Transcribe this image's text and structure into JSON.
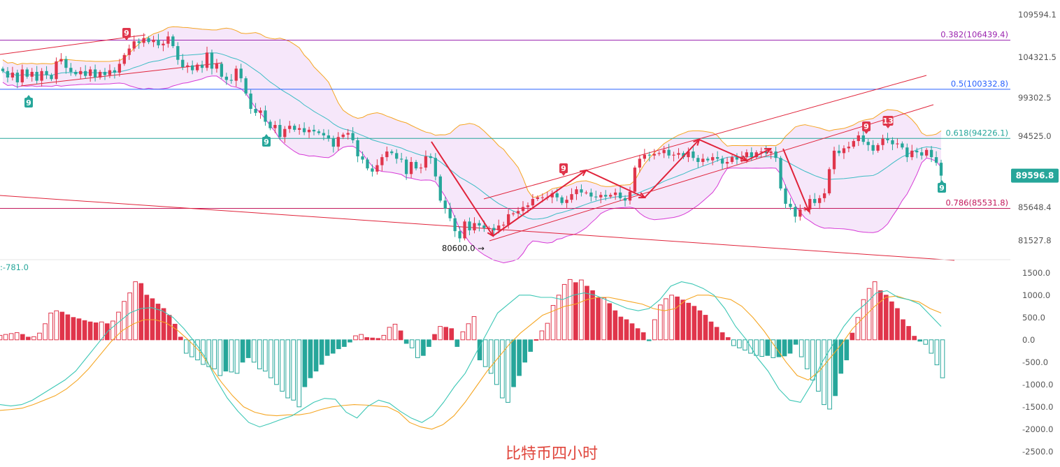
{
  "chart_data": [
    {
      "type": "candlestick",
      "title": "",
      "y_ticks": [
        "109594.1",
        "104321.5",
        "99302.5",
        "94525.0",
        "85648.4",
        "81527.8"
      ],
      "ylim": [
        79500,
        111000
      ],
      "current_price": {
        "label": "89596.8",
        "value": 89596.8,
        "color": "#26a69a"
      },
      "low_annotation": {
        "label": "80600.0",
        "value": 80600.0
      },
      "fib_levels": [
        {
          "label": "0.382(106439.4)",
          "value": 106439.4,
          "color": "#9c27b0"
        },
        {
          "label": "0.5(100332.8)",
          "value": 100332.8,
          "color": "#2962ff"
        },
        {
          "label": "0.618(94226.1)",
          "value": 94226.1,
          "color": "#26a69a"
        },
        {
          "label": "0.786(85531.8)",
          "value": 85531.8,
          "color": "#c2185b"
        }
      ],
      "td_markers": [
        {
          "label": "9",
          "type": "sell"
        },
        {
          "label": "9",
          "type": "buy"
        },
        {
          "label": "9",
          "type": "buy"
        },
        {
          "label": "9",
          "type": "sell"
        },
        {
          "label": "9",
          "type": "sell"
        },
        {
          "label": "13",
          "type": "sell"
        },
        {
          "label": "9",
          "type": "buy"
        }
      ],
      "closes": [
        102600,
        101800,
        102400,
        101200,
        102800,
        101900,
        102500,
        101400,
        102600,
        102100,
        101600,
        103800,
        104100,
        103000,
        102500,
        102200,
        102600,
        102000,
        102800,
        101800,
        102500,
        102100,
        102700,
        102400,
        103500,
        104600,
        105400,
        106300,
        106100,
        106700,
        106200,
        106500,
        105800,
        106000,
        106900,
        105700,
        104000,
        103100,
        103300,
        102700,
        103400,
        103000,
        104900,
        102900,
        103500,
        101900,
        101500,
        101400,
        102900,
        101700,
        99800,
        97900,
        97400,
        97700,
        96300,
        95500,
        95900,
        94400,
        95400,
        95800,
        95300,
        95500,
        95000,
        95300,
        95100,
        94900,
        94600,
        94200,
        93200,
        94400,
        94700,
        94900,
        94000,
        92000,
        91600,
        90500,
        90100,
        90900,
        91900,
        92600,
        92400,
        91700,
        91600,
        89800,
        91300,
        90500,
        90600,
        92000,
        91800,
        89500,
        86500,
        85500,
        84300,
        82700,
        81800,
        83900,
        82800,
        83700,
        83400,
        83100,
        83100,
        82800,
        83400,
        83500,
        84800,
        84900,
        85200,
        85700,
        85900,
        86700,
        86900,
        86900,
        86900,
        87400,
        86900,
        86200,
        86600,
        87300,
        87900,
        87500,
        87500,
        87000,
        86900,
        87200,
        87000,
        87200,
        87500,
        86800,
        86500,
        87600,
        90600,
        91700,
        92200,
        92100,
        92300,
        92400,
        92800,
        92100,
        92200,
        92400,
        91900,
        92600,
        91800,
        91300,
        91700,
        91500,
        91900,
        91700,
        91100,
        91300,
        91900,
        91600,
        91900,
        92500,
        91900,
        92500,
        92600,
        92400,
        92600,
        91800,
        88000,
        86100,
        85700,
        84500,
        85400,
        85400,
        86700,
        86200,
        86800,
        87400,
        90400,
        92700,
        92400,
        93000,
        93200,
        93900,
        94600,
        93800,
        93400,
        92700,
        93400,
        94200,
        94000,
        93500,
        93600,
        93100,
        91900,
        92700,
        92500,
        92100,
        92800,
        91900,
        91200,
        89600
      ]
    },
    {
      "type": "bar",
      "title": "",
      "label": "-781.0",
      "y_ticks": [
        "1500.0",
        "1000.0",
        "500.0",
        "0.0",
        "-500.0",
        "-1000.0",
        "-1500.0",
        "-2000.0",
        "-2500.0"
      ],
      "ylim": [
        -2800,
        1700
      ],
      "histogram": [
        100,
        120,
        140,
        160,
        120,
        60,
        70,
        150,
        360,
        600,
        650,
        620,
        560,
        500,
        470,
        430,
        400,
        380,
        400,
        360,
        420,
        620,
        860,
        1050,
        1300,
        1260,
        1000,
        920,
        800,
        700,
        550,
        350,
        60,
        -300,
        -380,
        -450,
        -550,
        -600,
        -650,
        -800,
        -700,
        -720,
        -750,
        -500,
        -400,
        -500,
        -650,
        -700,
        -850,
        -1000,
        -1150,
        -1300,
        -1350,
        -1500,
        -1050,
        -850,
        -700,
        -550,
        -350,
        -300,
        -200,
        -150,
        -50,
        90,
        120,
        50,
        40,
        30,
        100,
        280,
        350,
        200,
        -80,
        -180,
        -400,
        -350,
        -150,
        120,
        300,
        280,
        250,
        -150,
        180,
        360,
        520,
        -450,
        -600,
        -750,
        -1000,
        -1300,
        -1400,
        -1050,
        -800,
        -500,
        -260,
        5,
        200,
        370,
        770,
        1000,
        1240,
        1350,
        1280,
        1340,
        1200,
        1100,
        940,
        940,
        810,
        650,
        510,
        450,
        360,
        250,
        160,
        -20,
        450,
        780,
        920,
        1000,
        960,
        890,
        820,
        750,
        650,
        550,
        400,
        280,
        160,
        50,
        -130,
        -180,
        -230,
        -300,
        -350,
        -370,
        -350,
        -400,
        -380,
        -360,
        -300,
        -100,
        -380,
        -650,
        -900,
        -1150,
        -1450,
        -1550,
        -1250,
        -750,
        -450,
        150,
        500,
        900,
        1150,
        1300,
        1100,
        1000,
        850,
        700,
        450,
        300,
        80,
        -30,
        -100,
        -300,
        -560,
        -850
      ],
      "dif": [
        -1450,
        -1480,
        -1450,
        -1350,
        -1200,
        -1050,
        -900,
        -700,
        -400,
        -100,
        200,
        400,
        600,
        700,
        720,
        650,
        500,
        250,
        -50,
        -400,
        -900,
        -1300,
        -1600,
        -1850,
        -1950,
        -1870,
        -1780,
        -1700,
        -1550,
        -1400,
        -1310,
        -1330,
        -1620,
        -1750,
        -1490,
        -1350,
        -1420,
        -1600,
        -1750,
        -1850,
        -1700,
        -1400,
        -1050,
        -750,
        -300,
        150,
        600,
        800,
        1000,
        1000,
        950,
        950,
        900,
        1000,
        1050,
        1000,
        900,
        800,
        700,
        650,
        700,
        900,
        1200,
        1300,
        1250,
        1150,
        1000,
        700,
        300,
        0,
        -400,
        -700,
        -1100,
        -1350,
        -1400,
        -1000,
        -500,
        -100,
        300,
        600,
        800,
        1050,
        1100,
        950,
        900,
        800,
        550,
        300
      ],
      "dea": [
        -1580,
        -1560,
        -1530,
        -1450,
        -1350,
        -1250,
        -1100,
        -900,
        -650,
        -350,
        -50,
        200,
        350,
        450,
        450,
        380,
        220,
        0,
        -250,
        -600,
        -950,
        -1250,
        -1500,
        -1620,
        -1680,
        -1700,
        -1680,
        -1680,
        -1640,
        -1560,
        -1500,
        -1470,
        -1450,
        -1460,
        -1480,
        -1500,
        -1620,
        -1850,
        -1950,
        -2000,
        -1900,
        -1700,
        -1400,
        -1050,
        -700,
        -400,
        -100,
        150,
        350,
        550,
        650,
        750,
        800,
        900,
        950,
        950,
        900,
        850,
        800,
        700,
        650,
        700,
        900,
        1000,
        1000,
        950,
        900,
        750,
        500,
        200,
        -150,
        -500,
        -800,
        -900,
        -700,
        -400,
        -100,
        250,
        500,
        750,
        950,
        980,
        900,
        850,
        700,
        600
      ]
    }
  ],
  "watermark": "比特币四小时"
}
